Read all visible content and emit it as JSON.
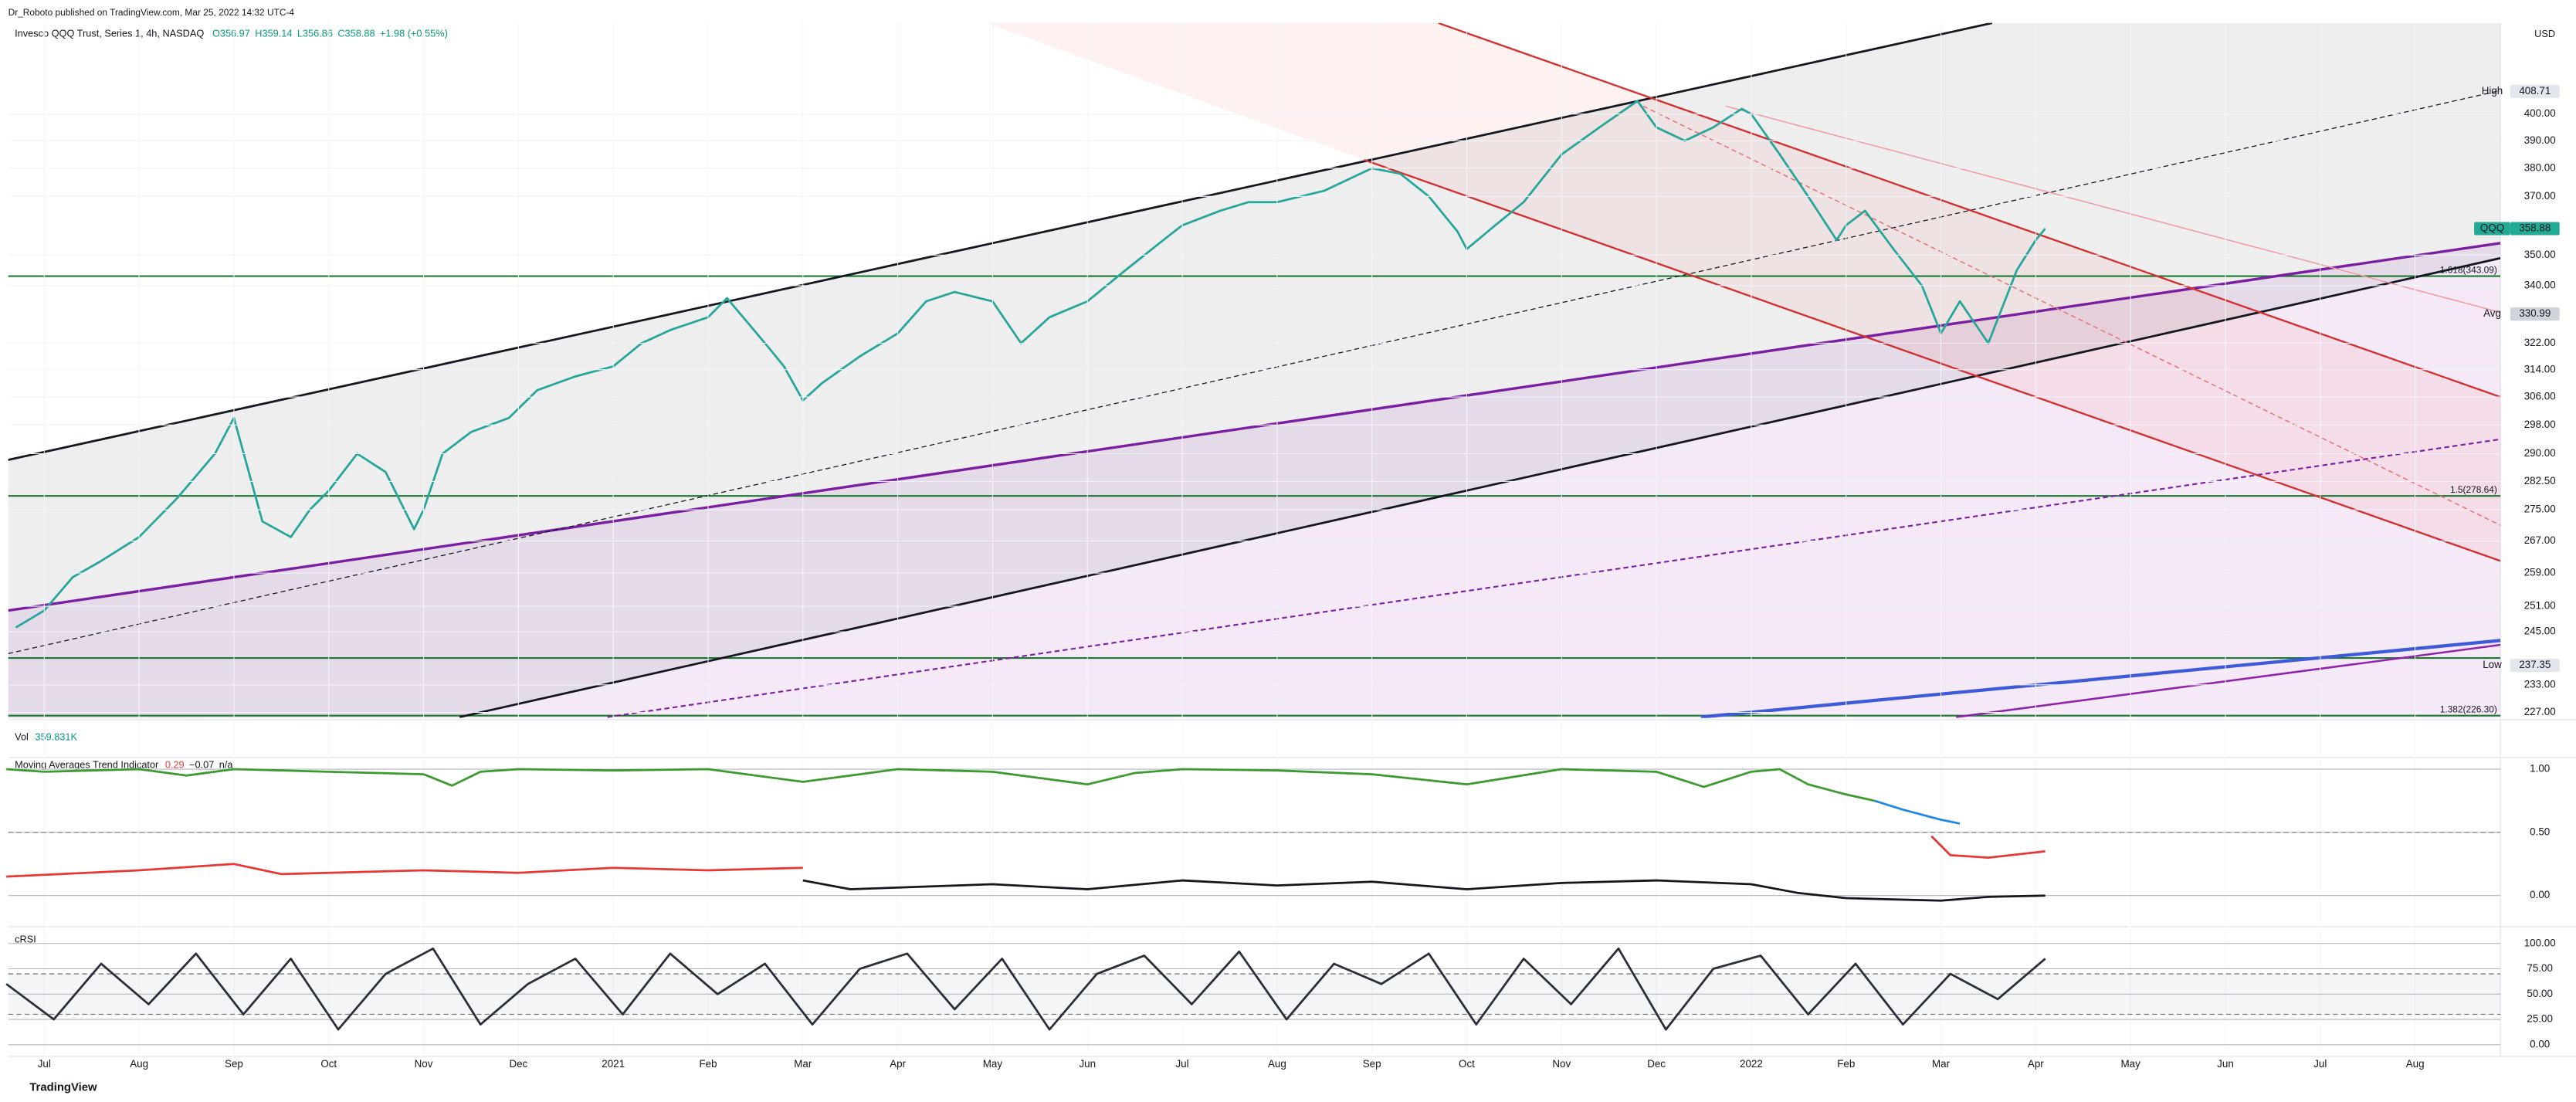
{
  "header": {
    "publisher": "Dr_Roboto published on TradingView.com, Mar 25, 2022 14:32 UTC-4",
    "symbol": "Invesco QQQ Trust, Series 1, 4h, NASDAQ",
    "ohlc": [
      "O356.97",
      "H359.14",
      "L356.86",
      "C358.88",
      "+1.98 (+0.55%)"
    ],
    "currency": "USD",
    "brand": "TradingView"
  },
  "chart_data": {
    "type": "line",
    "log_scale": true,
    "xlim": [
      -0.38,
      25.9
    ],
    "ylim": [
      225.8,
      436
    ],
    "xticks": [
      {
        "value": 0,
        "label": "Jul"
      },
      {
        "value": 1,
        "label": "Aug"
      },
      {
        "value": 2,
        "label": "Sep"
      },
      {
        "value": 3,
        "label": "Oct"
      },
      {
        "value": 4,
        "label": "Nov"
      },
      {
        "value": 5,
        "label": "Dec"
      },
      {
        "value": 6,
        "label": "2021"
      },
      {
        "value": 7,
        "label": "Feb"
      },
      {
        "value": 8,
        "label": "Mar"
      },
      {
        "value": 9,
        "label": "Apr"
      },
      {
        "value": 10,
        "label": "May"
      },
      {
        "value": 11,
        "label": "Jun"
      },
      {
        "value": 12,
        "label": "Jul"
      },
      {
        "value": 13,
        "label": "Aug"
      },
      {
        "value": 14,
        "label": "Sep"
      },
      {
        "value": 15,
        "label": "Oct"
      },
      {
        "value": 16,
        "label": "Nov"
      },
      {
        "value": 17,
        "label": "Dec"
      },
      {
        "value": 18,
        "label": "2022"
      },
      {
        "value": 19,
        "label": "Feb"
      },
      {
        "value": 20,
        "label": "Mar"
      },
      {
        "value": 21,
        "label": "Apr"
      },
      {
        "value": 22,
        "label": "May"
      },
      {
        "value": 23,
        "label": "Jun"
      },
      {
        "value": 24,
        "label": "Jul"
      },
      {
        "value": 25,
        "label": "Aug"
      }
    ],
    "yticks": [
      {
        "value": 400,
        "label": "400.00"
      },
      {
        "value": 390,
        "label": "390.00"
      },
      {
        "value": 380,
        "label": "380.00"
      },
      {
        "value": 370,
        "label": "370.00"
      },
      {
        "value": 350,
        "label": "350.00"
      },
      {
        "value": 340,
        "label": "340.00"
      },
      {
        "value": 322,
        "label": "322.00"
      },
      {
        "value": 314,
        "label": "314.00"
      },
      {
        "value": 306,
        "label": "306.00"
      },
      {
        "value": 298,
        "label": "298.00"
      },
      {
        "value": 290,
        "label": "290.00"
      },
      {
        "value": 282.5,
        "label": "282.50"
      },
      {
        "value": 275,
        "label": "275.00"
      },
      {
        "value": 267,
        "label": "267.00"
      },
      {
        "value": 259,
        "label": "259.00"
      },
      {
        "value": 251,
        "label": "251.00"
      },
      {
        "value": 245,
        "label": "245.00"
      },
      {
        "value": 233,
        "label": "233.00"
      },
      {
        "value": 227,
        "label": "227.00"
      }
    ],
    "grid": true,
    "series": [
      {
        "name": "QQQ",
        "color": "#26a69a",
        "x": [
          -0.3,
          0,
          0.3,
          0.6,
          1,
          1.4,
          1.8,
          2,
          2.3,
          2.6,
          2.8,
          3,
          3.3,
          3.6,
          3.9,
          4,
          4.2,
          4.5,
          4.9,
          5.2,
          5.6,
          6,
          6.3,
          6.6,
          7,
          7.2,
          7.6,
          7.8,
          8,
          8.2,
          8.6,
          9,
          9.3,
          9.6,
          10,
          10.3,
          10.6,
          11,
          11.4,
          11.8,
          12,
          12.4,
          12.7,
          13,
          13.5,
          14,
          14.3,
          14.6,
          14.9,
          15,
          15.3,
          15.6,
          16,
          16.4,
          16.8,
          17,
          17.3,
          17.6,
          17.9,
          18,
          18.3,
          18.6,
          18.9,
          19,
          19.2,
          19.5,
          19.8,
          20,
          20.2,
          20.5,
          20.8,
          21,
          21.1
        ],
        "values": [
          246,
          250,
          258,
          262,
          268,
          278,
          290,
          300,
          272,
          268,
          275,
          280,
          290,
          285,
          270,
          275,
          290,
          296,
          300,
          308,
          312,
          315,
          322,
          326,
          330,
          336,
          322,
          315,
          305,
          310,
          318,
          325,
          335,
          338,
          335,
          322,
          330,
          335,
          345,
          355,
          360,
          365,
          368,
          368,
          372,
          380,
          378,
          370,
          358,
          352,
          360,
          368,
          385,
          395,
          405,
          395,
          390,
          395,
          402,
          400,
          385,
          370,
          355,
          360,
          365,
          352,
          340,
          325,
          335,
          322,
          345,
          355,
          358.88
        ]
      }
    ],
    "price_labels": [
      {
        "name": "High",
        "value": 408.71,
        "color": "#e3e6ec",
        "text_color": "#131722"
      },
      {
        "name": "QQQ",
        "value": 358.88,
        "color": "#22ab94",
        "text_color": "#ffffff"
      },
      {
        "name": "Avg",
        "value": 330.99,
        "color": "#d1d4dc",
        "text_color": "#131722"
      },
      {
        "name": "Low",
        "value": 237.35,
        "color": "#e3e6ec",
        "text_color": "#131722"
      }
    ],
    "fib_levels": [
      {
        "label": "1.618(343.09)",
        "value": 343.09
      },
      {
        "label": "1.5(278.64)",
        "value": 278.64
      },
      {
        "label": "1.382(226.30)",
        "value": 226.3
      }
    ],
    "support": 239,
    "level_color": "#1b7a2e",
    "trend_lines": [
      {
        "color": "#131722",
        "width": 1.3,
        "dash": false,
        "points": [
          [
            -0.38,
            288.3
          ],
          [
            20.54,
            436
          ]
        ]
      },
      {
        "color": "#131722",
        "width": 1.3,
        "dash": false,
        "points": [
          [
            4.38,
            226
          ],
          [
            25.9,
            349
          ]
        ]
      },
      {
        "color": "#7b1fa2",
        "width": 1.6,
        "dash": false,
        "points": [
          [
            -0.38,
            250
          ],
          [
            25.9,
            354
          ]
        ]
      },
      {
        "color": "#131722",
        "width": 0.6,
        "dash": true,
        "points": [
          [
            -0.38,
            240
          ],
          [
            25.9,
            409
          ]
        ]
      },
      {
        "color": "#7b1fa2",
        "width": 1,
        "dash": true,
        "points": [
          [
            5.94,
            226
          ],
          [
            25.9,
            294
          ]
        ]
      },
      {
        "color": "#d32f2f",
        "width": 1.1,
        "dash": false,
        "points": [
          [
            14.7,
            436
          ],
          [
            25.9,
            306
          ]
        ]
      },
      {
        "color": "#d32f2f",
        "width": 1.1,
        "dash": false,
        "points": [
          [
            13.92,
            383
          ],
          [
            25.9,
            262
          ]
        ]
      },
      {
        "color": "#e57373",
        "width": 0.7,
        "dash": true,
        "points": [
          [
            16.86,
            403
          ],
          [
            25.9,
            271
          ]
        ]
      },
      {
        "color": "#ef9a9a",
        "width": 0.7,
        "dash": false,
        "points": [
          [
            17.73,
            403
          ],
          [
            25.9,
            331.5
          ]
        ]
      },
      {
        "color": "#3d5bd9",
        "width": 2,
        "dash": false,
        "points": [
          [
            17.47,
            226
          ],
          [
            25.9,
            243
          ]
        ]
      },
      {
        "color": "#8e24aa",
        "width": 1.2,
        "dash": false,
        "points": [
          [
            20.16,
            226
          ],
          [
            25.9,
            242
          ]
        ]
      }
    ]
  },
  "volume": {
    "title": "Vol",
    "value": "359.831K"
  },
  "ma_pane": {
    "title": "Moving Averages Trend Indicator",
    "readouts": [
      "0.29",
      "−0.07",
      "n/a"
    ],
    "ylim": [
      -0.22,
      1.08
    ],
    "yticks": [
      {
        "value": 1,
        "label": "1.00"
      },
      {
        "value": 0.5,
        "label": "0.50"
      },
      {
        "value": 0,
        "label": "0.00"
      }
    ],
    "dashed_levels": [
      0.5
    ],
    "series": [
      {
        "color": "#3c9a2e",
        "x": [
          -0.4,
          0,
          1,
          1.5,
          2,
          3,
          4,
          4.3,
          4.6,
          5,
          6,
          7,
          8,
          8.5,
          9,
          10,
          11,
          11.5,
          12,
          13,
          14,
          15,
          16,
          17,
          17.5,
          18,
          18.3,
          18.6,
          19,
          19.3
        ],
        "values": [
          1,
          0.98,
          1,
          0.95,
          1,
          0.98,
          0.96,
          0.87,
          0.98,
          1,
          0.99,
          1,
          0.9,
          0.95,
          1,
          0.98,
          0.88,
          0.97,
          1,
          0.99,
          0.96,
          0.88,
          1,
          0.98,
          0.86,
          0.98,
          1,
          0.88,
          0.8,
          0.75
        ]
      },
      {
        "color": "#1e88e5",
        "x": [
          19.3,
          19.6,
          20,
          20.2
        ],
        "values": [
          0.75,
          0.68,
          0.6,
          0.57
        ]
      },
      {
        "color": "#e53935",
        "x": [
          -0.4,
          1,
          2,
          2.5,
          3,
          4,
          5,
          6,
          7,
          8
        ],
        "values": [
          0.15,
          0.2,
          0.25,
          0.17,
          0.18,
          0.2,
          0.18,
          0.22,
          0.2,
          0.22
        ]
      },
      {
        "color": "#131722",
        "x": [
          8,
          8.5,
          10,
          11,
          12,
          13,
          14,
          15,
          16,
          17,
          18,
          18.5,
          19,
          20,
          20.5,
          21.1
        ],
        "values": [
          0.12,
          0.05,
          0.09,
          0.05,
          0.12,
          0.08,
          0.11,
          0.05,
          0.1,
          0.12,
          0.09,
          0.02,
          -0.02,
          -0.04,
          -0.01,
          0
        ]
      },
      {
        "color": "#e53935",
        "x": [
          19.9,
          20.1,
          20.5,
          21.1
        ],
        "values": [
          0.47,
          0.32,
          0.3,
          0.35
        ]
      }
    ]
  },
  "rsi_pane": {
    "title": "cRSI",
    "ylim": [
      -10,
      115
    ],
    "yticks": [
      {
        "value": 100,
        "label": "100.00"
      },
      {
        "value": 75,
        "label": "75.00"
      },
      {
        "value": 50,
        "label": "50.00"
      },
      {
        "value": 25,
        "label": "25.00"
      },
      {
        "value": 0,
        "label": "0.00"
      }
    ],
    "dashed_levels": [
      70,
      30
    ],
    "series": [
      {
        "color": "#2a2e39",
        "x": [
          -0.4,
          0.1,
          0.6,
          1.1,
          1.6,
          2.1,
          2.6,
          3.1,
          3.6,
          4.1,
          4.6,
          5.1,
          5.6,
          6.1,
          6.6,
          7.1,
          7.6,
          8.1,
          8.6,
          9.1,
          9.6,
          10.1,
          10.6,
          11.1,
          11.6,
          12.1,
          12.6,
          13.1,
          13.6,
          14.1,
          14.6,
          15.1,
          15.6,
          16.1,
          16.6,
          17.1,
          17.6,
          18.1,
          18.6,
          19.1,
          19.6,
          20.1,
          20.6,
          21.1
        ],
        "values": [
          60,
          25,
          80,
          40,
          90,
          30,
          85,
          15,
          70,
          95,
          20,
          60,
          85,
          30,
          90,
          50,
          80,
          20,
          75,
          90,
          35,
          85,
          15,
          70,
          88,
          40,
          92,
          25,
          80,
          60,
          90,
          20,
          85,
          40,
          95,
          15,
          75,
          88,
          30,
          80,
          20,
          70,
          45,
          85
        ]
      }
    ]
  }
}
